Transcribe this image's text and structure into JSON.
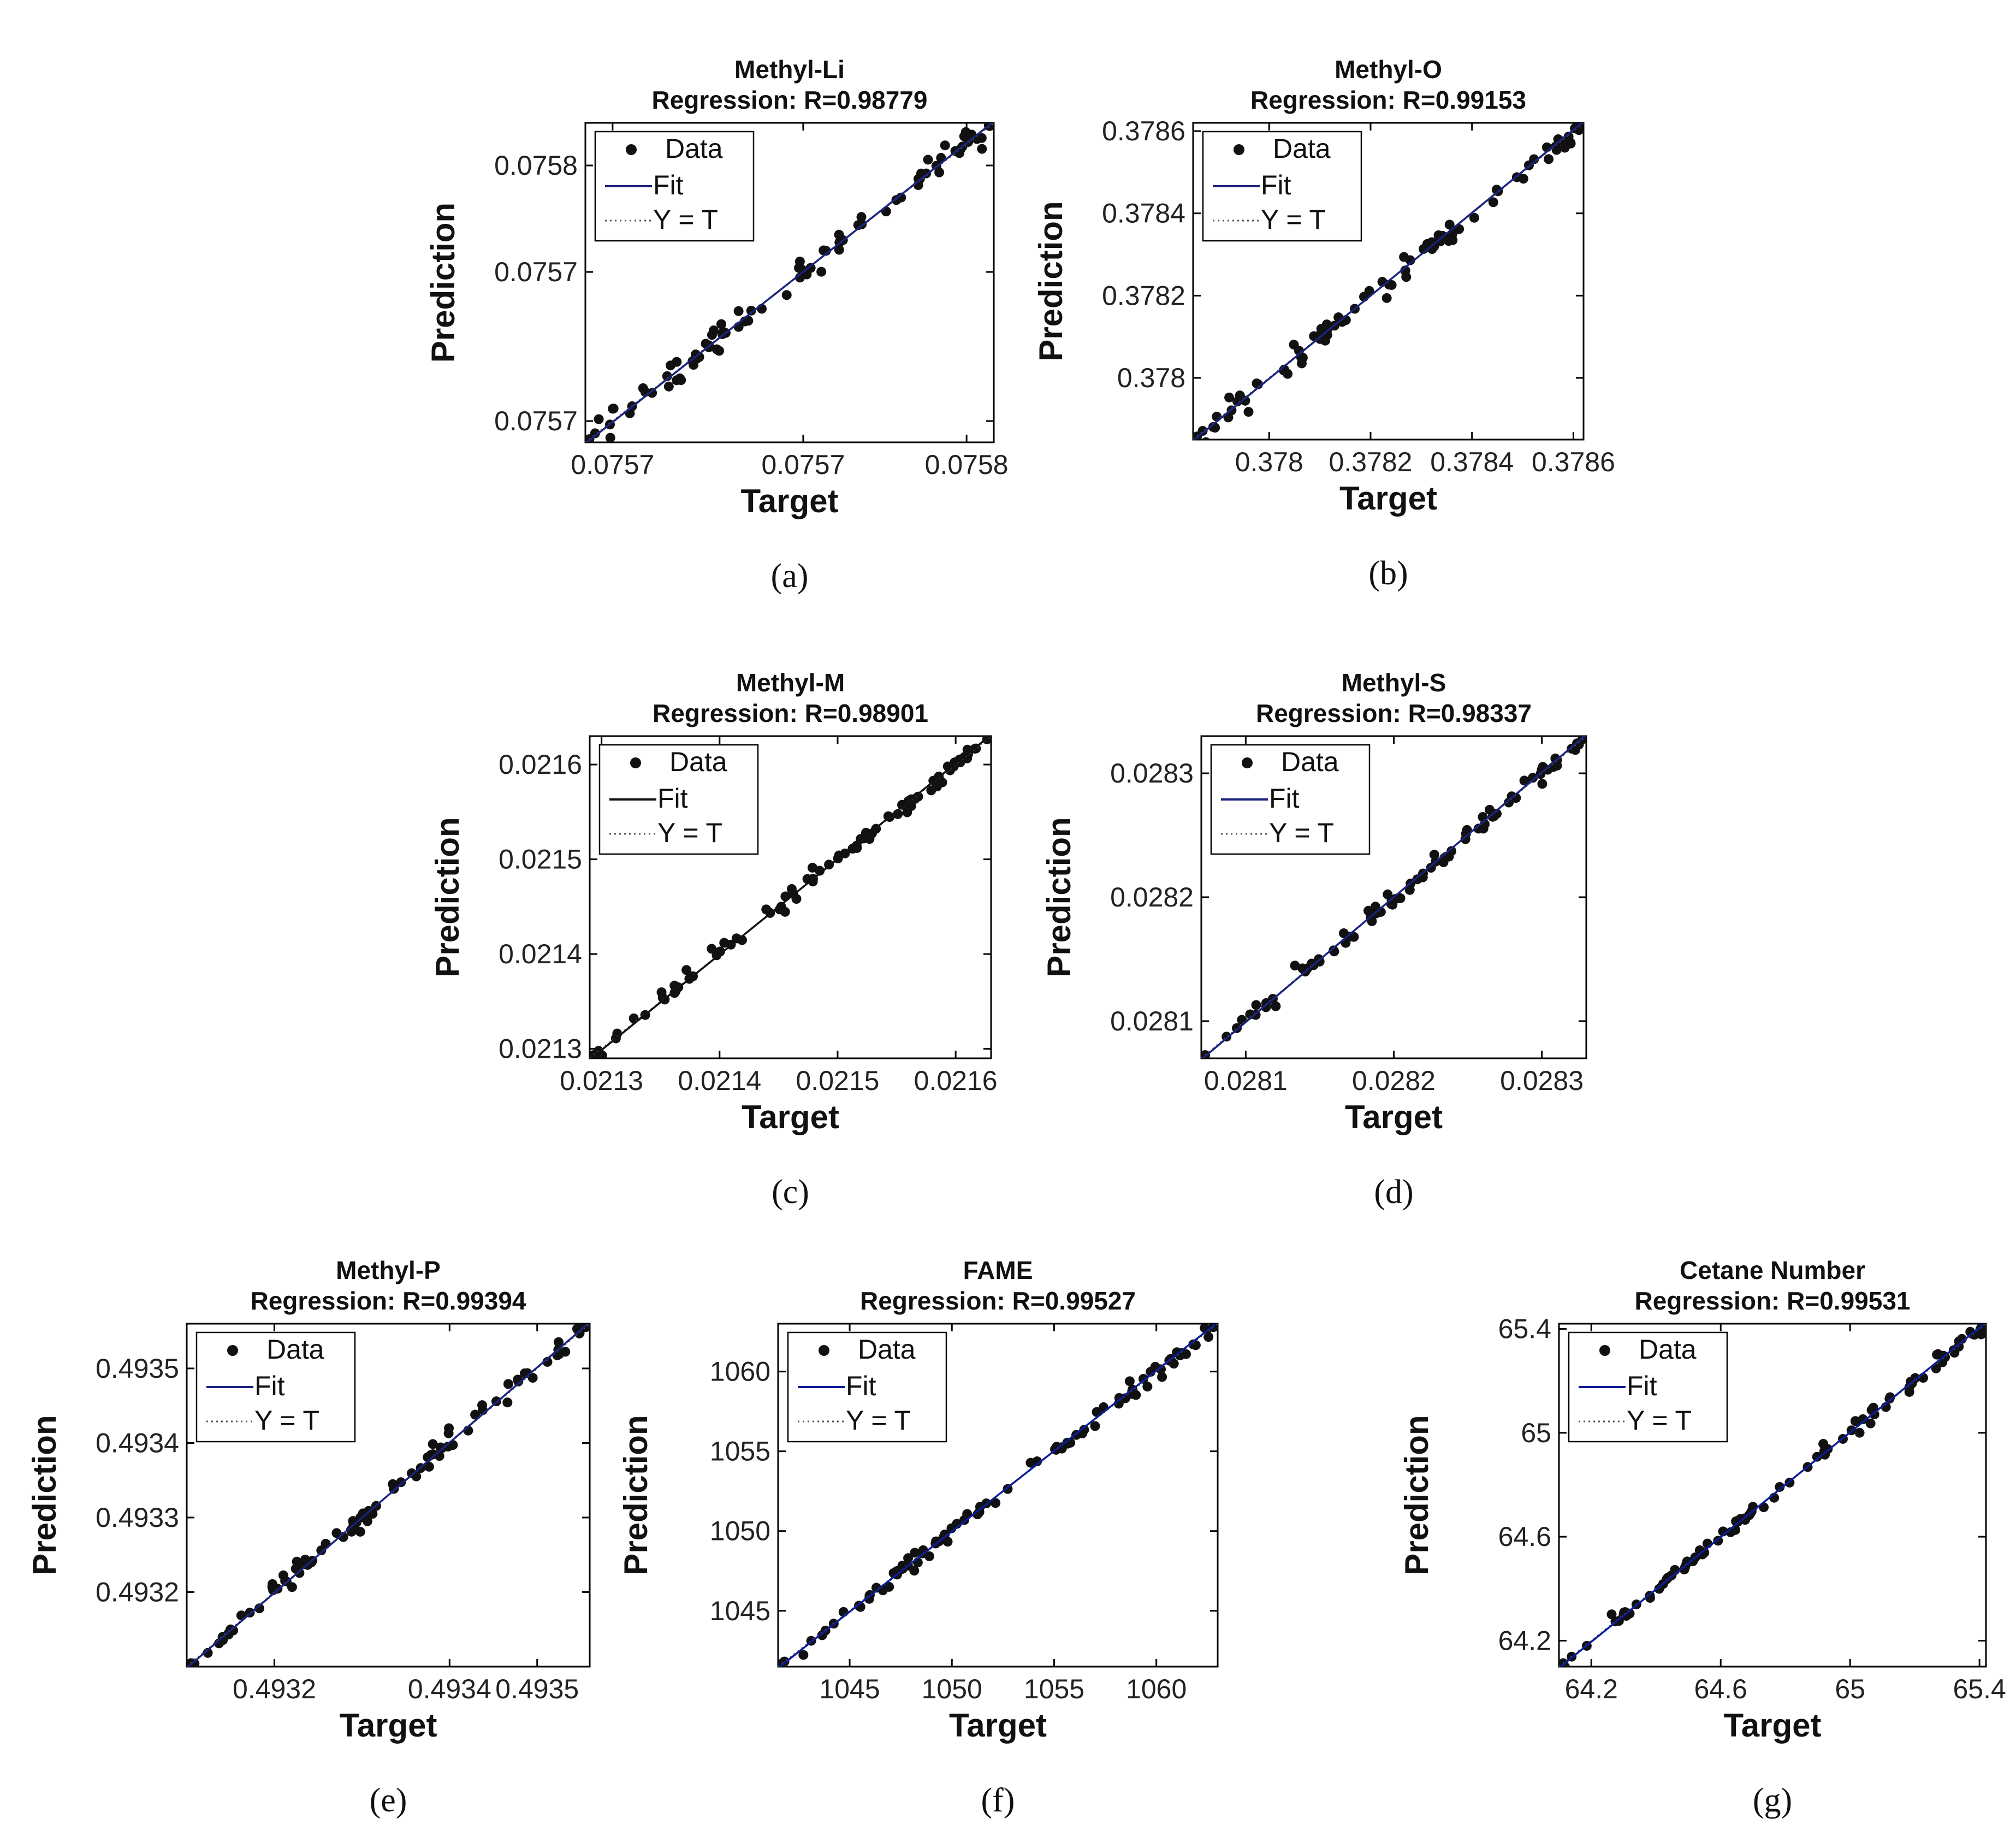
{
  "figure": {
    "ylabel": "Prediction",
    "xlabel": "Target",
    "legend": {
      "data": "Data",
      "fit": "Fit",
      "yt": "Y = T"
    }
  },
  "chart_data": [
    {
      "id": "a",
      "caption": "(a)",
      "type": "scatter",
      "title": "Methyl-Li",
      "subtitle": "Regression: R=0.98779",
      "r": 0.98779,
      "xlabel": "Target",
      "ylabel": "Prediction",
      "xlim": [
        0.07567,
        0.07582
      ],
      "ylim": [
        0.07567,
        0.07582
      ],
      "xticks": [
        0.07568,
        0.07575,
        0.07581
      ],
      "xticklabels": [
        "0.0757",
        "0.0757",
        "0.0758"
      ],
      "yticks": [
        0.07568,
        0.07575,
        0.0758
      ],
      "yticklabels": [
        "0.0757",
        "0.0757",
        "0.0758"
      ],
      "fit_color": "#1a237e",
      "n_points": 85,
      "noise": 0.022,
      "legend_position": "top-left"
    },
    {
      "id": "b",
      "caption": "(b)",
      "type": "scatter",
      "title": "Methyl-O",
      "subtitle": "Regression: R=0.99153",
      "r": 0.99153,
      "xlabel": "Target",
      "ylabel": "Prediction",
      "xlim": [
        0.37785,
        0.37862
      ],
      "ylim": [
        0.37785,
        0.37862
      ],
      "xticks": [
        0.378,
        0.3782,
        0.3784,
        0.3786
      ],
      "xticklabels": [
        "0.378",
        "0.3782",
        "0.3784",
        "0.3786"
      ],
      "yticks": [
        0.378,
        0.3782,
        0.3784,
        0.3786
      ],
      "yticklabels": [
        "0.378",
        "0.3782",
        "0.3784",
        "0.3786"
      ],
      "fit_color": "#1a237e",
      "n_points": 85,
      "noise": 0.02,
      "legend_position": "top-left"
    },
    {
      "id": "c",
      "caption": "(c)",
      "type": "scatter",
      "title": "Methyl-M",
      "subtitle": "Regression: R=0.98901",
      "r": 0.98901,
      "xlabel": "Target",
      "ylabel": "Prediction",
      "xlim": [
        0.02129,
        0.02163
      ],
      "ylim": [
        0.02129,
        0.02163
      ],
      "xticks": [
        0.0213,
        0.0214,
        0.0215,
        0.0216
      ],
      "xticklabels": [
        "0.0213",
        "0.0214",
        "0.0215",
        "0.0216"
      ],
      "yticks": [
        0.0213,
        0.0214,
        0.0215,
        0.0216
      ],
      "yticklabels": [
        "0.0213",
        "0.0214",
        "0.0215",
        "0.0216"
      ],
      "fit_color": "#111111",
      "n_points": 80,
      "noise": 0.012,
      "legend_position": "top-left"
    },
    {
      "id": "d",
      "caption": "(d)",
      "type": "scatter",
      "title": "Methyl-S",
      "subtitle": "Regression: R=0.98337",
      "r": 0.98337,
      "xlabel": "Target",
      "ylabel": "Prediction",
      "xlim": [
        0.02807,
        0.02833
      ],
      "ylim": [
        0.02807,
        0.02833
      ],
      "xticks": [
        0.0281,
        0.0282,
        0.0283
      ],
      "xticklabels": [
        "0.0281",
        "0.0282",
        "0.0283"
      ],
      "yticks": [
        0.0281,
        0.0282,
        0.0283
      ],
      "yticklabels": [
        "0.0281",
        "0.0282",
        "0.0283"
      ],
      "fit_color": "#1a237e",
      "n_points": 80,
      "noise": 0.013,
      "legend_position": "top-left"
    },
    {
      "id": "e",
      "caption": "(e)",
      "type": "scatter",
      "title": "Methyl-P",
      "subtitle": "Regression: R=0.99394",
      "r": 0.99394,
      "xlabel": "Target",
      "ylabel": "Prediction",
      "xlim": [
        0.4931,
        0.49356
      ],
      "ylim": [
        0.4931,
        0.49356
      ],
      "xticks": [
        0.4932,
        0.4934,
        0.4935
      ],
      "xticklabels": [
        "0.4932",
        "0.4934",
        "0.4935"
      ],
      "yticks": [
        0.4932,
        0.4933,
        0.4934,
        0.4935
      ],
      "yticklabels": [
        "0.4932",
        "0.4933",
        "0.4934",
        "0.4935"
      ],
      "fit_color": "#1a237e",
      "n_points": 90,
      "noise": 0.015,
      "legend_position": "top-left"
    },
    {
      "id": "f",
      "caption": "(f)",
      "type": "scatter",
      "title": "FAME",
      "subtitle": "Regression: R=0.99527",
      "r": 0.99527,
      "xlabel": "Target",
      "ylabel": "Prediction",
      "xlim": [
        1041.5,
        1063
      ],
      "ylim": [
        1041.5,
        1063
      ],
      "xticks": [
        1045,
        1050,
        1055,
        1060
      ],
      "xticklabels": [
        "1045",
        "1050",
        "1055",
        "1060"
      ],
      "yticks": [
        1045,
        1050,
        1055,
        1060
      ],
      "yticklabels": [
        "1045",
        "1050",
        "1055",
        "1060"
      ],
      "fit_color": "#0d1b9a",
      "n_points": 90,
      "noise": 0.012,
      "legend_position": "top-left"
    },
    {
      "id": "g",
      "caption": "(g)",
      "type": "scatter",
      "title": "Cetane Number",
      "subtitle": "Regression: R=0.99531",
      "r": 0.99531,
      "xlabel": "Target",
      "ylabel": "Prediction",
      "xlim": [
        64.1,
        65.42
      ],
      "ylim": [
        64.1,
        65.42
      ],
      "xticks": [
        64.2,
        64.6,
        65,
        65.4
      ],
      "xticklabels": [
        "64.2",
        "64.6",
        "65",
        "65.4"
      ],
      "yticks": [
        64.2,
        64.6,
        65,
        65.4
      ],
      "yticklabels": [
        "64.2",
        "64.6",
        "65",
        "65.4"
      ],
      "fit_color": "#0d1b9a",
      "n_points": 90,
      "noise": 0.012,
      "legend_position": "top-left"
    }
  ]
}
